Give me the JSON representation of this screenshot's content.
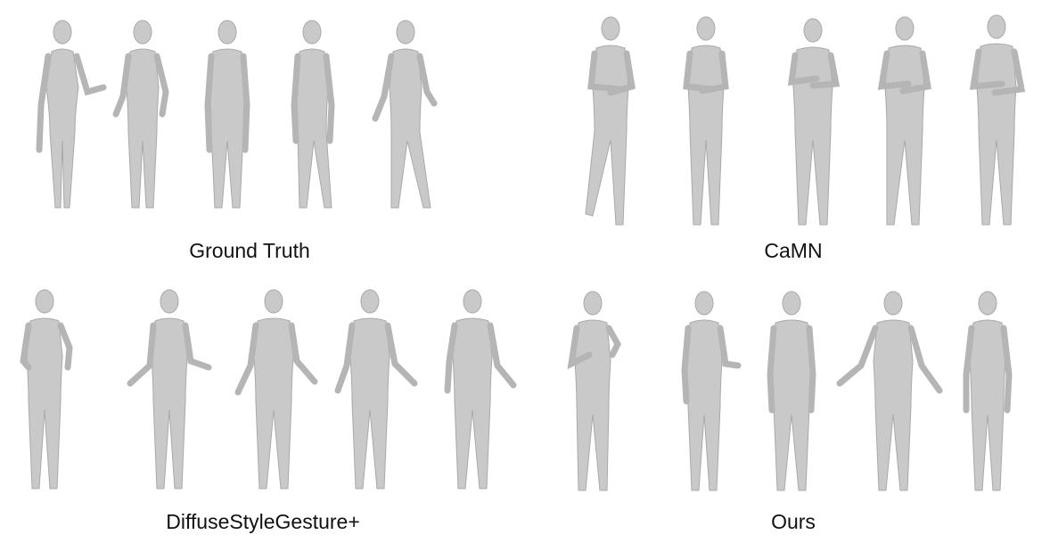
{
  "figure": {
    "panels": [
      {
        "id": "ground-truth",
        "caption": "Ground Truth",
        "figure_count": 5
      },
      {
        "id": "camn",
        "caption": "CaMN",
        "figure_count": 5
      },
      {
        "id": "diffusestylegesture-plus",
        "caption": "DiffuseStyleGesture+",
        "figure_count": 5
      },
      {
        "id": "ours",
        "caption": "Ours",
        "figure_count": 5
      }
    ],
    "colors": {
      "body_fill": "#c9c9c9",
      "body_shade": "#a9a9a9",
      "caption_text": "#111111",
      "background": "#ffffff"
    }
  }
}
